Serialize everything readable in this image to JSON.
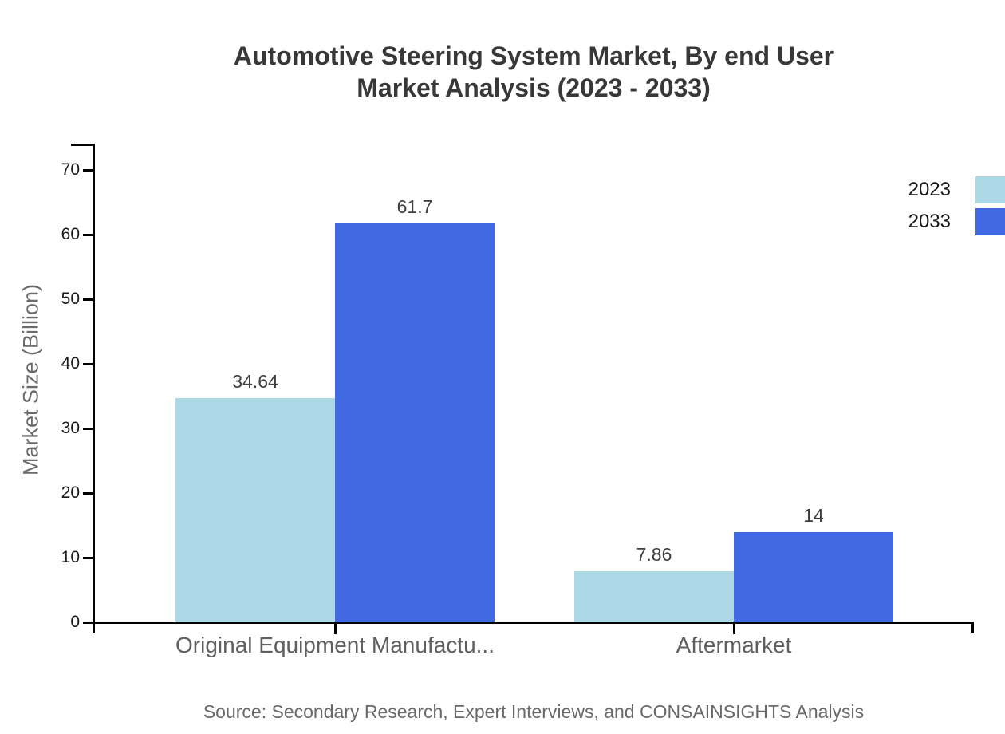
{
  "chart_data": {
    "type": "bar",
    "title_lines": [
      "Automotive Steering System Market, By end User",
      "Market Analysis (2023 - 2033)"
    ],
    "ylabel": "Market Size (Billion)",
    "xlabel": "",
    "categories": [
      "Original Equipment Manufactu...",
      "Aftermarket"
    ],
    "series": [
      {
        "name": "2023",
        "color": "#ADD8E6",
        "values": [
          34.64,
          7.86
        ],
        "labels": [
          "34.64",
          "7.86"
        ]
      },
      {
        "name": "2033",
        "color": "#4169E1",
        "values": [
          61.7,
          14
        ],
        "labels": [
          "61.7",
          "14"
        ]
      }
    ],
    "yticks": [
      0,
      10,
      20,
      30,
      40,
      50,
      60,
      70
    ],
    "ylim": [
      0,
      70
    ],
    "grid": false,
    "legend_position": "top-right",
    "axis_color": "#000000",
    "source": "Source: Secondary Research, Expert Interviews, and CONSAINSIGHTS Analysis"
  }
}
